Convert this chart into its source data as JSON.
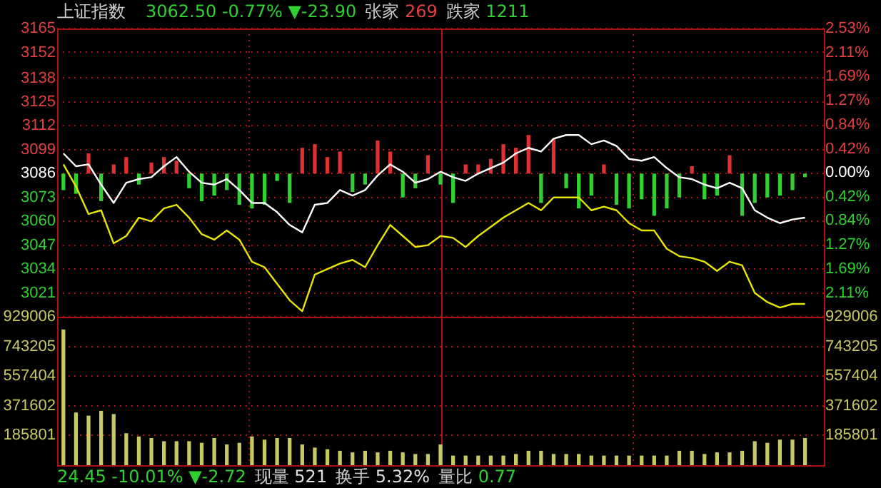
{
  "chart_data": [
    {
      "type": "line",
      "title": "上证指数",
      "annotations": [
        "3062.50 -0.77% ▼-23.90",
        "张家 269",
        "跌家 1211"
      ],
      "categories": [
        null,
        null,
        null,
        null,
        null,
        null,
        null,
        null,
        null,
        null,
        null,
        null,
        null,
        null,
        null,
        null,
        null,
        null,
        null,
        null,
        null,
        null,
        null,
        null,
        null,
        null,
        null,
        null,
        null,
        null,
        null,
        null,
        null,
        null,
        null,
        null,
        null,
        null,
        null,
        null,
        null,
        null,
        null,
        null,
        null,
        null,
        null,
        null,
        null,
        null,
        null,
        null,
        null,
        null,
        null,
        null,
        null,
        null,
        null,
        null,
        null
      ],
      "series": [
        {
          "type": "bar",
          "base": [
            3086,
            3086,
            3086,
            3086,
            3086,
            3086,
            3086,
            3086,
            3086,
            3086,
            3086,
            3086,
            3086,
            3086,
            3086,
            3086,
            3086,
            3086,
            3086,
            3086,
            3086,
            3086,
            3086,
            3086,
            3086,
            3086,
            3086,
            3086,
            3086,
            3086,
            3086,
            3086,
            3086,
            3086,
            3086,
            3086,
            3086,
            3086,
            3086,
            3086,
            3086,
            3086,
            3086,
            3086,
            3086,
            3086,
            3086,
            3086,
            3086,
            3086,
            3086,
            3086,
            3086,
            3086,
            3086,
            3086,
            3086,
            3086,
            3086,
            3086,
            null
          ],
          "values": [
            -9,
            -11,
            11,
            -15,
            5,
            9,
            -6,
            6,
            9,
            7,
            -8,
            -15,
            -12,
            -9,
            -17,
            -19,
            -17,
            -4,
            -16,
            14,
            16,
            9,
            12,
            -10,
            -6,
            18,
            12,
            -13,
            -8,
            10,
            -6,
            -16,
            5,
            5,
            8,
            16,
            14,
            21,
            -16,
            19,
            -8,
            -19,
            -12,
            5,
            -17,
            -19,
            -14,
            -23,
            -19,
            -13,
            4,
            -14,
            -12,
            10,
            -23,
            -16,
            -13,
            -12,
            -9,
            -2,
            null
          ],
          "colors": [
            "#30d030",
            "#30d030",
            "#e03030",
            "#30d030",
            "#e03030",
            "#e03030",
            "#30d030",
            "#e03030",
            "#e03030",
            "#e03030",
            "#30d030",
            "#30d030",
            "#30d030",
            "#30d030",
            "#30d030",
            "#30d030",
            "#30d030",
            "#30d030",
            "#30d030",
            "#e03030",
            "#e03030",
            "#e03030",
            "#e03030",
            "#30d030",
            "#30d030",
            "#e03030",
            "#e03030",
            "#30d030",
            "#30d030",
            "#e03030",
            "#30d030",
            "#30d030",
            "#e03030",
            "#e03030",
            "#e03030",
            "#e03030",
            "#e03030",
            "#e03030",
            "#30d030",
            "#e03030",
            "#30d030",
            "#30d030",
            "#30d030",
            "#e03030",
            "#30d030",
            "#30d030",
            "#30d030",
            "#30d030",
            "#30d030",
            "#30d030",
            "#e03030",
            "#30d030",
            "#30d030",
            "#e03030",
            "#30d030",
            "#30d030",
            "#30d030",
            "#30d030",
            "#30d030",
            "#30d030",
            "#30d030"
          ]
        },
        {
          "type": "line",
          "color": "#ffffff",
          "values": [
            3097,
            3090,
            3091,
            3080,
            3070,
            3081,
            3083,
            3084,
            3090,
            3095,
            3087,
            3081,
            3080,
            3083,
            3077,
            3070,
            3070,
            3065,
            3058,
            3054,
            3069,
            3070,
            3077,
            3074,
            3077,
            3085,
            3091,
            3087,
            3081,
            3083,
            3087,
            3084,
            3082,
            3086,
            3089,
            3092,
            3097,
            3100,
            3098,
            3105,
            3107,
            3107,
            3102,
            3104,
            3101,
            3094,
            3093,
            3095,
            3089,
            3084,
            3083,
            3080,
            3078,
            3081,
            3078,
            3066,
            3062,
            3059,
            3061,
            3062,
            null
          ]
        },
        {
          "type": "line",
          "color": "#e6e600",
          "values": [
            3091,
            3079,
            3064,
            3066,
            3048,
            3052,
            3062,
            3060,
            3067,
            3069,
            3062,
            3053,
            3050,
            3055,
            3050,
            3038,
            3035,
            3026,
            3017,
            3011,
            3031,
            3034,
            3037,
            3039,
            3035,
            3047,
            3058,
            3052,
            3046,
            3047,
            3052,
            3051,
            3046,
            3052,
            3057,
            3062,
            3066,
            3070,
            3066,
            3073,
            3073,
            3073,
            3066,
            3068,
            3066,
            3059,
            3055,
            3055,
            3045,
            3041,
            3040,
            3038,
            3033,
            3038,
            3036,
            3021,
            3016,
            3013,
            3015,
            3015,
            null
          ]
        }
      ],
      "ylim": [
        3008,
        3165
      ],
      "yticks": [
        3165,
        3152,
        3138,
        3125,
        3112,
        3099,
        3086,
        3073,
        3060,
        3047,
        3034,
        3021
      ],
      "y2lim": [
        -2.53,
        2.53
      ],
      "y2ticks": [
        {
          "value": 2.53,
          "label": "2.53%"
        },
        {
          "value": 2.11,
          "label": "2.11%"
        },
        {
          "value": 1.69,
          "label": "1.69%"
        },
        {
          "value": 1.27,
          "label": "1.27%"
        },
        {
          "value": 0.84,
          "label": "0.84%"
        },
        {
          "value": 0.42,
          "label": "0.42%"
        },
        {
          "value": 0,
          "label": "0.00%"
        },
        {
          "value": -0.42,
          "label": "0.42%"
        },
        {
          "value": -0.84,
          "label": "0.84%"
        },
        {
          "value": -1.27,
          "label": "1.27%"
        },
        {
          "value": -1.69,
          "label": "1.69%"
        },
        {
          "value": -2.11,
          "label": "2.11%"
        }
      ],
      "grid": "y",
      "marker": "none",
      "tick_labels": "y"
    },
    {
      "type": "bar",
      "annotations": [
        "24.45 -10.01% ▼-2.72",
        "现量 521",
        "换手 5.32%",
        "量比 0.77"
      ],
      "categories": [
        null,
        null,
        null,
        null,
        null,
        null,
        null,
        null,
        null,
        null,
        null,
        null,
        null,
        null,
        null,
        null,
        null,
        null,
        null,
        null,
        null,
        null,
        null,
        null,
        null,
        null,
        null,
        null,
        null,
        null,
        null,
        null,
        null,
        null,
        null,
        null,
        null,
        null,
        null,
        null,
        null,
        null,
        null,
        null,
        null,
        null,
        null,
        null,
        null,
        null,
        null,
        null,
        null,
        null,
        null,
        null,
        null,
        null,
        null,
        null,
        null
      ],
      "color": "#c8c864",
      "values": [
        850000,
        330000,
        310000,
        340000,
        320000,
        200000,
        180000,
        170000,
        150000,
        150000,
        150000,
        140000,
        170000,
        130000,
        140000,
        180000,
        160000,
        170000,
        170000,
        130000,
        110000,
        100000,
        90000,
        80000,
        90000,
        80000,
        90000,
        80000,
        70000,
        70000,
        130000,
        60000,
        60000,
        60000,
        60000,
        60000,
        70000,
        90000,
        90000,
        70000,
        70000,
        70000,
        60000,
        60000,
        60000,
        60000,
        60000,
        60000,
        60000,
        90000,
        90000,
        70000,
        80000,
        80000,
        90000,
        150000,
        140000,
        160000,
        160000,
        170000,
        null
      ],
      "ylim": [
        0,
        929006
      ],
      "yticks": [
        929006,
        743205,
        557404,
        371602,
        185801
      ],
      "y2lim": [
        0,
        929006
      ],
      "y2ticks": [
        929006,
        743205,
        557404,
        371602,
        185801
      ],
      "grid": "y",
      "tick_labels": "y"
    }
  ]
}
